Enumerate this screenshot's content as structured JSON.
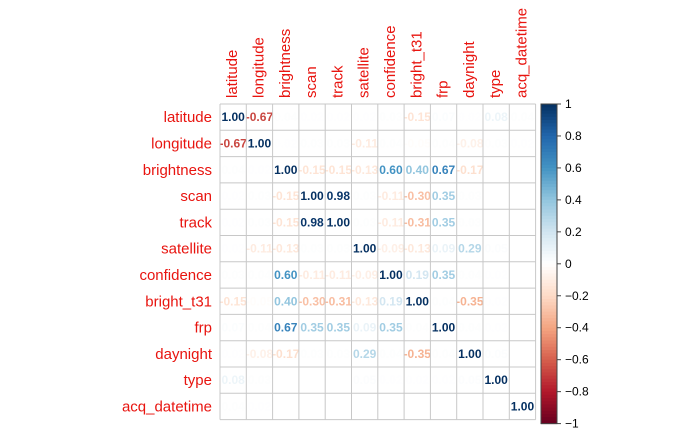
{
  "chart_data": {
    "type": "heatmap",
    "variables": [
      "latitude",
      "longitude",
      "brightness",
      "scan",
      "track",
      "satellite",
      "confidence",
      "bright_t31",
      "frp",
      "daynight",
      "type",
      "acq_datetime"
    ],
    "matrix": [
      [
        1.0,
        -0.67,
        0.04,
        0.02,
        0.02,
        0.02,
        0.03,
        -0.15,
        0.07,
        0.02,
        0.08,
        0.04
      ],
      [
        -0.67,
        1.0,
        0.02,
        0.03,
        0.03,
        -0.11,
        0.04,
        -0.05,
        0.04,
        -0.08,
        0.03,
        0.02
      ],
      [
        0.04,
        0.02,
        1.0,
        -0.15,
        -0.15,
        -0.13,
        0.6,
        0.4,
        0.67,
        -0.17,
        0.0,
        0.0
      ],
      [
        0.02,
        0.03,
        -0.15,
        1.0,
        0.98,
        0.03,
        -0.11,
        -0.3,
        0.35,
        0.03,
        0.0,
        0.0
      ],
      [
        0.02,
        0.03,
        -0.15,
        0.98,
        1.0,
        0.03,
        -0.11,
        -0.31,
        0.35,
        0.03,
        0.0,
        0.0
      ],
      [
        0.02,
        -0.11,
        -0.13,
        0.03,
        0.03,
        1.0,
        -0.09,
        -0.13,
        0.09,
        0.29,
        0.05,
        0.0
      ],
      [
        0.03,
        0.04,
        0.6,
        -0.11,
        -0.11,
        -0.09,
        1.0,
        0.19,
        0.35,
        0.04,
        0.02,
        0.0
      ],
      [
        -0.15,
        -0.05,
        0.4,
        -0.3,
        -0.31,
        -0.13,
        0.19,
        1.0,
        0.04,
        -0.35,
        0.02,
        0.0
      ],
      [
        0.07,
        0.04,
        0.67,
        0.35,
        0.35,
        0.09,
        0.35,
        0.04,
        1.0,
        0.04,
        0.02,
        0.0
      ],
      [
        0.02,
        -0.08,
        -0.17,
        0.03,
        0.03,
        0.29,
        0.04,
        -0.35,
        0.04,
        1.0,
        0.05,
        0.0
      ],
      [
        0.08,
        0.03,
        0.0,
        0.0,
        0.0,
        0.05,
        0.02,
        0.02,
        0.02,
        0.05,
        1.0,
        0.0
      ],
      [
        0.04,
        0.02,
        0.0,
        0.0,
        0.0,
        0.0,
        0.0,
        0.0,
        0.0,
        0.0,
        0.0,
        1.0
      ]
    ],
    "colorbar": {
      "ticks": [
        "1",
        "0.8",
        "0.6",
        "0.4",
        "0.2",
        "0",
        "−0.2",
        "−0.4",
        "−0.6",
        "−0.8",
        "−1"
      ],
      "range": [
        -1,
        1
      ]
    },
    "colors": {
      "negative": "#67001f",
      "mid": "#ffffff",
      "positive": "#053061",
      "label": "#e8140f",
      "grid": "#c8c8c8"
    },
    "title": "",
    "xlabel": "",
    "ylabel": ""
  }
}
